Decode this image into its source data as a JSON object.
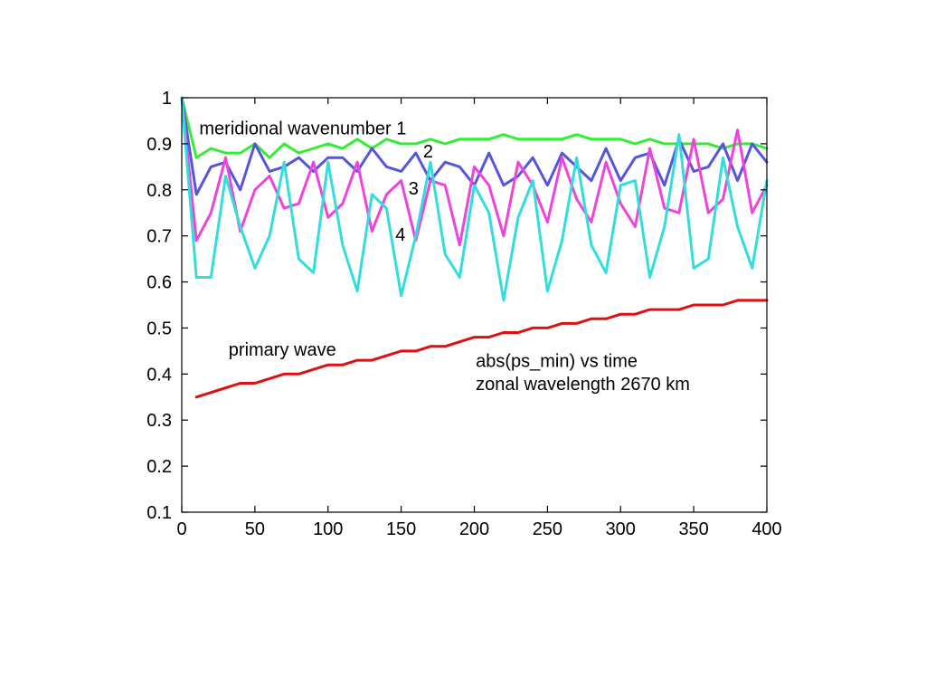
{
  "chart_data": {
    "type": "line",
    "title": "",
    "xlabel": "",
    "ylabel": "",
    "xlim": [
      0,
      400
    ],
    "ylim": [
      0.1,
      1
    ],
    "grid": false,
    "xticks": [
      {
        "value": 0,
        "label": "0"
      },
      {
        "value": 50,
        "label": "50"
      },
      {
        "value": 100,
        "label": "100"
      },
      {
        "value": 150,
        "label": "150"
      },
      {
        "value": 200,
        "label": "200"
      },
      {
        "value": 250,
        "label": "250"
      },
      {
        "value": 300,
        "label": "300"
      },
      {
        "value": 350,
        "label": "350"
      },
      {
        "value": 400,
        "label": "400"
      }
    ],
    "yticks": [
      {
        "value": 0.1,
        "label": "0.1"
      },
      {
        "value": 0.2,
        "label": "0.2"
      },
      {
        "value": 0.3,
        "label": "0.3"
      },
      {
        "value": 0.4,
        "label": "0.4"
      },
      {
        "value": 0.5,
        "label": "0.5"
      },
      {
        "value": 0.6,
        "label": "0.6"
      },
      {
        "value": 0.7,
        "label": "0.7"
      },
      {
        "value": 0.8,
        "label": "0.8"
      },
      {
        "value": 0.9,
        "label": "0.9"
      },
      {
        "value": 1,
        "label": "1"
      }
    ],
    "annotations": [
      {
        "id": "meridional",
        "text": "meridional wavenumber 1",
        "x": 12,
        "y": 0.92
      },
      {
        "id": "label-2",
        "text": "2",
        "x": 165,
        "y": 0.87
      },
      {
        "id": "label-3",
        "text": "3",
        "x": 155,
        "y": 0.79
      },
      {
        "id": "label-4",
        "text": "4",
        "x": 146,
        "y": 0.69
      },
      {
        "id": "primary",
        "text": "primary wave",
        "x": 32,
        "y": 0.44
      },
      {
        "id": "info-1",
        "text": "abs(ps_min) vs time",
        "x": 201,
        "y": 0.415
      },
      {
        "id": "info-2",
        "text": "zonal wavelength 2670 km",
        "x": 201,
        "y": 0.365
      }
    ],
    "series": [
      {
        "id": "wn1",
        "color": "#33ee33",
        "x": [
          0,
          10,
          20,
          30,
          40,
          50,
          60,
          70,
          80,
          90,
          100,
          110,
          120,
          130,
          140,
          150,
          160,
          170,
          180,
          190,
          200,
          210,
          220,
          230,
          240,
          250,
          260,
          270,
          280,
          290,
          300,
          310,
          320,
          330,
          340,
          350,
          360,
          370,
          380,
          390,
          400
        ],
        "y": [
          1.0,
          0.87,
          0.89,
          0.88,
          0.88,
          0.9,
          0.87,
          0.9,
          0.88,
          0.89,
          0.9,
          0.89,
          0.91,
          0.89,
          0.91,
          0.9,
          0.9,
          0.91,
          0.9,
          0.91,
          0.91,
          0.91,
          0.92,
          0.91,
          0.91,
          0.91,
          0.91,
          0.92,
          0.91,
          0.91,
          0.91,
          0.9,
          0.91,
          0.9,
          0.9,
          0.9,
          0.9,
          0.89,
          0.9,
          0.9,
          0.89
        ]
      },
      {
        "id": "wn2",
        "color": "#5555dd",
        "x": [
          0,
          10,
          20,
          30,
          40,
          50,
          60,
          70,
          80,
          90,
          100,
          110,
          120,
          130,
          140,
          150,
          160,
          170,
          180,
          190,
          200,
          210,
          220,
          230,
          240,
          250,
          260,
          270,
          280,
          290,
          300,
          310,
          320,
          330,
          340,
          350,
          360,
          370,
          380,
          390,
          400
        ],
        "y": [
          1.0,
          0.79,
          0.85,
          0.86,
          0.8,
          0.9,
          0.84,
          0.85,
          0.87,
          0.84,
          0.87,
          0.87,
          0.84,
          0.89,
          0.85,
          0.84,
          0.88,
          0.82,
          0.86,
          0.85,
          0.81,
          0.88,
          0.81,
          0.83,
          0.87,
          0.81,
          0.88,
          0.85,
          0.82,
          0.89,
          0.82,
          0.87,
          0.88,
          0.81,
          0.91,
          0.84,
          0.85,
          0.9,
          0.82,
          0.9,
          0.86
        ]
      },
      {
        "id": "wn3",
        "color": "#ee44dd",
        "x": [
          0,
          10,
          20,
          30,
          40,
          50,
          60,
          70,
          80,
          90,
          100,
          110,
          120,
          130,
          140,
          150,
          160,
          170,
          180,
          190,
          200,
          210,
          220,
          230,
          240,
          250,
          260,
          270,
          280,
          290,
          300,
          310,
          320,
          330,
          340,
          350,
          360,
          370,
          380,
          390,
          400
        ],
        "y": [
          1.0,
          0.69,
          0.75,
          0.87,
          0.71,
          0.8,
          0.83,
          0.76,
          0.77,
          0.86,
          0.74,
          0.77,
          0.86,
          0.71,
          0.79,
          0.82,
          0.69,
          0.82,
          0.81,
          0.68,
          0.85,
          0.81,
          0.7,
          0.86,
          0.81,
          0.73,
          0.87,
          0.78,
          0.73,
          0.86,
          0.77,
          0.72,
          0.89,
          0.76,
          0.75,
          0.91,
          0.75,
          0.78,
          0.93,
          0.75,
          0.81
        ]
      },
      {
        "id": "wn4",
        "color": "#33dddd",
        "x": [
          0,
          10,
          20,
          30,
          40,
          50,
          60,
          70,
          80,
          90,
          100,
          110,
          120,
          130,
          140,
          150,
          160,
          170,
          180,
          190,
          200,
          210,
          220,
          230,
          240,
          250,
          260,
          270,
          280,
          290,
          300,
          310,
          320,
          330,
          340,
          350,
          360,
          370,
          380,
          390,
          400
        ],
        "y": [
          1.0,
          0.61,
          0.61,
          0.83,
          0.72,
          0.63,
          0.7,
          0.86,
          0.65,
          0.62,
          0.86,
          0.68,
          0.58,
          0.79,
          0.76,
          0.57,
          0.7,
          0.86,
          0.66,
          0.61,
          0.81,
          0.75,
          0.56,
          0.74,
          0.82,
          0.58,
          0.69,
          0.87,
          0.68,
          0.62,
          0.81,
          0.82,
          0.61,
          0.72,
          0.92,
          0.63,
          0.65,
          0.87,
          0.72,
          0.63,
          0.82
        ]
      },
      {
        "id": "primary",
        "color": "#dd1111",
        "x": [
          10,
          40,
          50,
          70,
          80,
          100,
          110,
          120,
          130,
          150,
          160,
          170,
          180,
          200,
          210,
          220,
          230,
          240,
          250,
          260,
          270,
          280,
          290,
          300,
          310,
          320,
          340,
          350,
          370,
          380,
          400
        ],
        "y": [
          0.35,
          0.38,
          0.38,
          0.4,
          0.4,
          0.42,
          0.42,
          0.43,
          0.43,
          0.45,
          0.45,
          0.46,
          0.46,
          0.48,
          0.48,
          0.49,
          0.49,
          0.5,
          0.5,
          0.51,
          0.51,
          0.52,
          0.52,
          0.53,
          0.53,
          0.54,
          0.54,
          0.55,
          0.55,
          0.56,
          0.56
        ]
      }
    ]
  }
}
